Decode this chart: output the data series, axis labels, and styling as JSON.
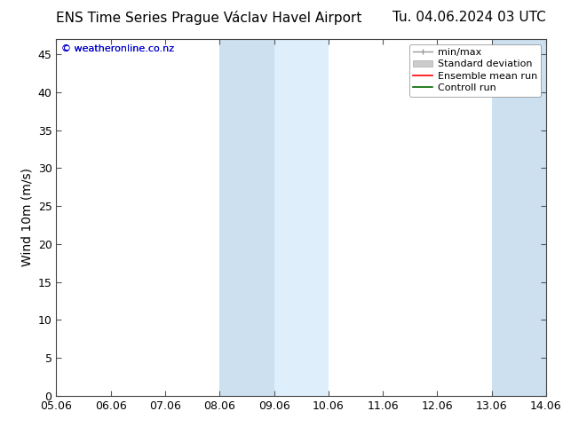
{
  "title_left": "ENS Time Series Prague Václav Havel Airport",
  "title_right": "Tu. 04.06.2024 03 UTC",
  "ylabel": "Wind 10m (m/s)",
  "watermark": "© weatheronline.co.nz",
  "xtick_labels": [
    "05.06",
    "06.06",
    "07.06",
    "08.06",
    "09.06",
    "10.06",
    "11.06",
    "12.06",
    "13.06",
    "14.06"
  ],
  "ytick_values": [
    0,
    5,
    10,
    15,
    20,
    25,
    30,
    35,
    40,
    45
  ],
  "ymax": 47,
  "ymin": 0,
  "shaded_bands": [
    {
      "xstart": 3.0,
      "xend": 4.0,
      "color": "#cce0f0"
    },
    {
      "xstart": 4.0,
      "xend": 5.0,
      "color": "#deeefa"
    },
    {
      "xstart": 8.0,
      "xend": 9.0,
      "color": "#cce0f0"
    },
    {
      "xstart": 9.0,
      "xend": 10.0,
      "color": "#deeefa"
    }
  ],
  "background_color": "#ffffff",
  "title_fontsize": 11,
  "axis_fontsize": 10,
  "tick_fontsize": 9,
  "watermark_color": "#0000cc",
  "legend_fontsize": 8,
  "spine_color": "#444444"
}
